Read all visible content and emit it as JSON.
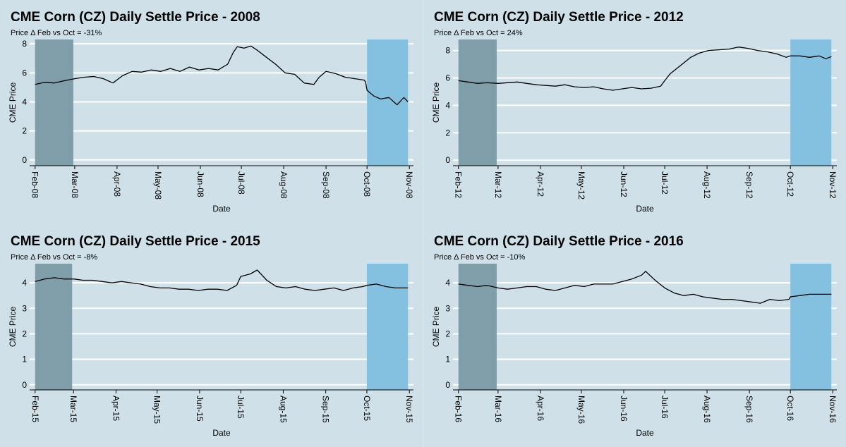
{
  "chart_data": [
    {
      "type": "line",
      "title": "CME Corn (CZ) Daily Settle Price - 2008",
      "subtitle": "Price Δ Feb vs Oct = -31%",
      "xlabel": "Date",
      "ylabel": "CME Price",
      "xlim": [
        "2008-01-28",
        "2008-11-04"
      ],
      "ylim": [
        -0.4,
        8.3
      ],
      "yticks": [
        0,
        2,
        4,
        6,
        8
      ],
      "xticks": [
        {
          "date": "2008-02-01",
          "label": "Feb-08"
        },
        {
          "date": "2008-03-01",
          "label": "Mar-08"
        },
        {
          "date": "2008-04-01",
          "label": "Apr-08"
        },
        {
          "date": "2008-05-01",
          "label": "May-08"
        },
        {
          "date": "2008-06-01",
          "label": "Jun-08"
        },
        {
          "date": "2008-07-01",
          "label": "Jul-08"
        },
        {
          "date": "2008-08-01",
          "label": "Aug-08"
        },
        {
          "date": "2008-09-01",
          "label": "Sep-08"
        },
        {
          "date": "2008-10-01",
          "label": "Oct-08"
        },
        {
          "date": "2008-11-01",
          "label": "Nov-08"
        }
      ],
      "shaded_ranges": [
        {
          "start": "2008-02-01",
          "end": "2008-02-29",
          "color": "#7f9ea9"
        },
        {
          "start": "2008-10-01",
          "end": "2008-10-31",
          "color": "#84c1e0"
        }
      ],
      "series": [
        {
          "color": "#000000",
          "points": [
            [
              "2008-02-01",
              5.2
            ],
            [
              "2008-02-08",
              5.35
            ],
            [
              "2008-02-15",
              5.3
            ],
            [
              "2008-02-22",
              5.45
            ],
            [
              "2008-03-01",
              5.6
            ],
            [
              "2008-03-08",
              5.7
            ],
            [
              "2008-03-15",
              5.75
            ],
            [
              "2008-03-22",
              5.6
            ],
            [
              "2008-03-29",
              5.3
            ],
            [
              "2008-04-05",
              5.8
            ],
            [
              "2008-04-12",
              6.1
            ],
            [
              "2008-04-19",
              6.05
            ],
            [
              "2008-04-26",
              6.2
            ],
            [
              "2008-05-03",
              6.1
            ],
            [
              "2008-05-10",
              6.3
            ],
            [
              "2008-05-17",
              6.1
            ],
            [
              "2008-05-24",
              6.4
            ],
            [
              "2008-05-31",
              6.2
            ],
            [
              "2008-06-07",
              6.3
            ],
            [
              "2008-06-14",
              6.2
            ],
            [
              "2008-06-21",
              6.6
            ],
            [
              "2008-06-25",
              7.4
            ],
            [
              "2008-06-28",
              7.8
            ],
            [
              "2008-07-03",
              7.7
            ],
            [
              "2008-07-08",
              7.85
            ],
            [
              "2008-07-12",
              7.6
            ],
            [
              "2008-07-19",
              7.1
            ],
            [
              "2008-07-26",
              6.6
            ],
            [
              "2008-08-02",
              6.0
            ],
            [
              "2008-08-09",
              5.9
            ],
            [
              "2008-08-16",
              5.3
            ],
            [
              "2008-08-23",
              5.2
            ],
            [
              "2008-08-27",
              5.7
            ],
            [
              "2008-09-01",
              6.1
            ],
            [
              "2008-09-08",
              5.95
            ],
            [
              "2008-09-15",
              5.7
            ],
            [
              "2008-09-22",
              5.6
            ],
            [
              "2008-09-29",
              5.5
            ],
            [
              "2008-09-30",
              5.35
            ],
            [
              "2008-10-01",
              4.8
            ],
            [
              "2008-10-06",
              4.4
            ],
            [
              "2008-10-11",
              4.2
            ],
            [
              "2008-10-17",
              4.3
            ],
            [
              "2008-10-23",
              3.8
            ],
            [
              "2008-10-28",
              4.3
            ],
            [
              "2008-10-31",
              4.0
            ]
          ]
        }
      ]
    },
    {
      "type": "line",
      "title": "CME Corn (CZ) Daily Settle Price - 2012",
      "subtitle": "Price Δ Feb vs Oct = 24%",
      "xlabel": "Date",
      "ylabel": "CME Price",
      "xlim": [
        "2012-01-28",
        "2012-11-04"
      ],
      "ylim": [
        -0.4,
        8.8
      ],
      "yticks": [
        0,
        2,
        4,
        6,
        8
      ],
      "xticks": [
        {
          "date": "2012-02-01",
          "label": "Feb-12"
        },
        {
          "date": "2012-03-01",
          "label": "Mar-12"
        },
        {
          "date": "2012-04-01",
          "label": "Apr-12"
        },
        {
          "date": "2012-05-01",
          "label": "May-12"
        },
        {
          "date": "2012-06-01",
          "label": "Jun-12"
        },
        {
          "date": "2012-07-01",
          "label": "Jul-12"
        },
        {
          "date": "2012-08-01",
          "label": "Aug-12"
        },
        {
          "date": "2012-09-01",
          "label": "Sep-12"
        },
        {
          "date": "2012-10-01",
          "label": "Oct-12"
        },
        {
          "date": "2012-11-01",
          "label": "Nov-12"
        }
      ],
      "shaded_ranges": [
        {
          "start": "2012-02-01",
          "end": "2012-02-29",
          "color": "#7f9ea9"
        },
        {
          "start": "2012-10-01",
          "end": "2012-10-31",
          "color": "#84c1e0"
        }
      ],
      "series": [
        {
          "color": "#000000",
          "points": [
            [
              "2012-02-01",
              5.8
            ],
            [
              "2012-02-08",
              5.7
            ],
            [
              "2012-02-15",
              5.6
            ],
            [
              "2012-02-22",
              5.65
            ],
            [
              "2012-03-01",
              5.6
            ],
            [
              "2012-03-08",
              5.65
            ],
            [
              "2012-03-15",
              5.7
            ],
            [
              "2012-03-22",
              5.6
            ],
            [
              "2012-03-29",
              5.5
            ],
            [
              "2012-04-05",
              5.45
            ],
            [
              "2012-04-12",
              5.4
            ],
            [
              "2012-04-19",
              5.5
            ],
            [
              "2012-04-26",
              5.35
            ],
            [
              "2012-05-03",
              5.3
            ],
            [
              "2012-05-10",
              5.35
            ],
            [
              "2012-05-17",
              5.2
            ],
            [
              "2012-05-24",
              5.1
            ],
            [
              "2012-05-31",
              5.2
            ],
            [
              "2012-06-07",
              5.3
            ],
            [
              "2012-06-14",
              5.2
            ],
            [
              "2012-06-21",
              5.25
            ],
            [
              "2012-06-28",
              5.4
            ],
            [
              "2012-07-01",
              5.8
            ],
            [
              "2012-07-05",
              6.3
            ],
            [
              "2012-07-10",
              6.7
            ],
            [
              "2012-07-15",
              7.1
            ],
            [
              "2012-07-20",
              7.5
            ],
            [
              "2012-07-26",
              7.8
            ],
            [
              "2012-08-02",
              8.0
            ],
            [
              "2012-08-10",
              8.05
            ],
            [
              "2012-08-17",
              8.1
            ],
            [
              "2012-08-24",
              8.25
            ],
            [
              "2012-08-31",
              8.15
            ],
            [
              "2012-09-07",
              8.0
            ],
            [
              "2012-09-14",
              7.9
            ],
            [
              "2012-09-21",
              7.75
            ],
            [
              "2012-09-28",
              7.5
            ],
            [
              "2012-10-01",
              7.6
            ],
            [
              "2012-10-08",
              7.6
            ],
            [
              "2012-10-15",
              7.5
            ],
            [
              "2012-10-22",
              7.6
            ],
            [
              "2012-10-27",
              7.4
            ],
            [
              "2012-10-31",
              7.55
            ]
          ]
        }
      ]
    },
    {
      "type": "line",
      "title": "CME Corn (CZ) Daily Settle Price - 2015",
      "subtitle": "Price Δ Feb vs Oct = -8%",
      "xlabel": "Date",
      "ylabel": "CME Price",
      "xlim": [
        "2015-01-28",
        "2015-11-04"
      ],
      "ylim": [
        -0.2,
        4.75
      ],
      "yticks": [
        0,
        1,
        2,
        3,
        4
      ],
      "xticks": [
        {
          "date": "2015-02-01",
          "label": "Feb-15"
        },
        {
          "date": "2015-03-01",
          "label": "Mar-15"
        },
        {
          "date": "2015-04-01",
          "label": "Apr-15"
        },
        {
          "date": "2015-05-01",
          "label": "May-15"
        },
        {
          "date": "2015-06-01",
          "label": "Jun-15"
        },
        {
          "date": "2015-07-01",
          "label": "Jul-15"
        },
        {
          "date": "2015-08-01",
          "label": "Aug-15"
        },
        {
          "date": "2015-09-01",
          "label": "Sep-15"
        },
        {
          "date": "2015-10-01",
          "label": "Oct-15"
        },
        {
          "date": "2015-11-01",
          "label": "Nov-15"
        }
      ],
      "shaded_ranges": [
        {
          "start": "2015-02-01",
          "end": "2015-02-28",
          "color": "#7f9ea9"
        },
        {
          "start": "2015-10-01",
          "end": "2015-10-31",
          "color": "#84c1e0"
        }
      ],
      "series": [
        {
          "color": "#000000",
          "points": [
            [
              "2015-02-01",
              4.05
            ],
            [
              "2015-02-08",
              4.15
            ],
            [
              "2015-02-15",
              4.2
            ],
            [
              "2015-02-22",
              4.15
            ],
            [
              "2015-03-01",
              4.15
            ],
            [
              "2015-03-08",
              4.1
            ],
            [
              "2015-03-15",
              4.1
            ],
            [
              "2015-03-22",
              4.05
            ],
            [
              "2015-03-29",
              4.0
            ],
            [
              "2015-04-05",
              4.05
            ],
            [
              "2015-04-12",
              4.0
            ],
            [
              "2015-04-19",
              3.95
            ],
            [
              "2015-04-26",
              3.85
            ],
            [
              "2015-05-03",
              3.8
            ],
            [
              "2015-05-10",
              3.8
            ],
            [
              "2015-05-17",
              3.75
            ],
            [
              "2015-05-24",
              3.75
            ],
            [
              "2015-05-31",
              3.7
            ],
            [
              "2015-06-07",
              3.75
            ],
            [
              "2015-06-14",
              3.75
            ],
            [
              "2015-06-21",
              3.7
            ],
            [
              "2015-06-28",
              3.9
            ],
            [
              "2015-07-01",
              4.25
            ],
            [
              "2015-07-08",
              4.35
            ],
            [
              "2015-07-13",
              4.5
            ],
            [
              "2015-07-20",
              4.1
            ],
            [
              "2015-07-27",
              3.85
            ],
            [
              "2015-08-03",
              3.8
            ],
            [
              "2015-08-10",
              3.85
            ],
            [
              "2015-08-17",
              3.75
            ],
            [
              "2015-08-24",
              3.7
            ],
            [
              "2015-08-31",
              3.75
            ],
            [
              "2015-09-07",
              3.8
            ],
            [
              "2015-09-14",
              3.7
            ],
            [
              "2015-09-21",
              3.8
            ],
            [
              "2015-09-28",
              3.85
            ],
            [
              "2015-10-01",
              3.9
            ],
            [
              "2015-10-08",
              3.95
            ],
            [
              "2015-10-15",
              3.85
            ],
            [
              "2015-10-22",
              3.8
            ],
            [
              "2015-10-31",
              3.8
            ]
          ]
        }
      ]
    },
    {
      "type": "line",
      "title": "CME Corn (CZ) Daily Settle Price - 2016",
      "subtitle": "Price Δ Feb vs Oct = -10%",
      "xlabel": "Date",
      "ylabel": "CME Price",
      "xlim": [
        "2016-01-28",
        "2016-11-04"
      ],
      "ylim": [
        -0.2,
        4.75
      ],
      "yticks": [
        0,
        1,
        2,
        3,
        4
      ],
      "xticks": [
        {
          "date": "2016-02-01",
          "label": "Feb-16"
        },
        {
          "date": "2016-03-01",
          "label": "Mar-16"
        },
        {
          "date": "2016-04-01",
          "label": "Apr-16"
        },
        {
          "date": "2016-05-01",
          "label": "May-16"
        },
        {
          "date": "2016-06-01",
          "label": "Jun-16"
        },
        {
          "date": "2016-07-01",
          "label": "Jul-16"
        },
        {
          "date": "2016-08-01",
          "label": "Aug-16"
        },
        {
          "date": "2016-09-01",
          "label": "Sep-16"
        },
        {
          "date": "2016-10-01",
          "label": "Oct-16"
        },
        {
          "date": "2016-11-01",
          "label": "Nov-16"
        }
      ],
      "shaded_ranges": [
        {
          "start": "2016-02-01",
          "end": "2016-02-29",
          "color": "#7f9ea9"
        },
        {
          "start": "2016-10-01",
          "end": "2016-10-31",
          "color": "#84c1e0"
        }
      ],
      "series": [
        {
          "color": "#000000",
          "points": [
            [
              "2016-02-01",
              3.95
            ],
            [
              "2016-02-08",
              3.9
            ],
            [
              "2016-02-15",
              3.85
            ],
            [
              "2016-02-22",
              3.9
            ],
            [
              "2016-03-01",
              3.8
            ],
            [
              "2016-03-08",
              3.75
            ],
            [
              "2016-03-15",
              3.8
            ],
            [
              "2016-03-22",
              3.85
            ],
            [
              "2016-03-29",
              3.85
            ],
            [
              "2016-04-05",
              3.75
            ],
            [
              "2016-04-12",
              3.7
            ],
            [
              "2016-04-19",
              3.8
            ],
            [
              "2016-04-26",
              3.9
            ],
            [
              "2016-05-03",
              3.85
            ],
            [
              "2016-05-10",
              3.95
            ],
            [
              "2016-05-17",
              3.95
            ],
            [
              "2016-05-24",
              3.95
            ],
            [
              "2016-05-31",
              4.05
            ],
            [
              "2016-06-07",
              4.15
            ],
            [
              "2016-06-14",
              4.3
            ],
            [
              "2016-06-17",
              4.45
            ],
            [
              "2016-06-24",
              4.1
            ],
            [
              "2016-07-01",
              3.8
            ],
            [
              "2016-07-08",
              3.6
            ],
            [
              "2016-07-15",
              3.5
            ],
            [
              "2016-07-22",
              3.55
            ],
            [
              "2016-07-29",
              3.45
            ],
            [
              "2016-08-05",
              3.4
            ],
            [
              "2016-08-12",
              3.35
            ],
            [
              "2016-08-19",
              3.35
            ],
            [
              "2016-08-26",
              3.3
            ],
            [
              "2016-09-02",
              3.25
            ],
            [
              "2016-09-09",
              3.2
            ],
            [
              "2016-09-16",
              3.35
            ],
            [
              "2016-09-23",
              3.3
            ],
            [
              "2016-09-30",
              3.35
            ],
            [
              "2016-10-01",
              3.45
            ],
            [
              "2016-10-08",
              3.5
            ],
            [
              "2016-10-15",
              3.55
            ],
            [
              "2016-10-22",
              3.55
            ],
            [
              "2016-10-31",
              3.55
            ]
          ]
        }
      ]
    }
  ]
}
